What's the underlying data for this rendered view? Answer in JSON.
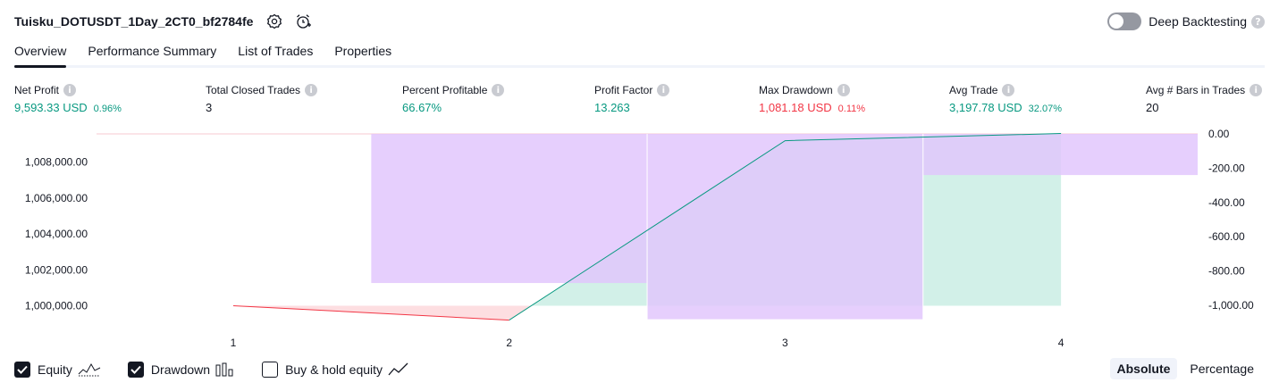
{
  "header": {
    "title": "Tuisku_DOTUSDT_1Day_2CT0_bf2784fe",
    "settings_icon": "gear-icon",
    "alert_icon": "alarm-clock-plus-icon"
  },
  "deep_backtesting": {
    "label": "Deep Backtesting",
    "enabled": false,
    "help": "?"
  },
  "tabs": [
    {
      "label": "Overview",
      "active": true
    },
    {
      "label": "Performance Summary",
      "active": false
    },
    {
      "label": "List of Trades",
      "active": false
    },
    {
      "label": "Properties",
      "active": false
    }
  ],
  "metrics": [
    {
      "label": "Net Profit",
      "value": "9,593.33 USD",
      "pct": "0.96%",
      "tone": "green"
    },
    {
      "label": "Total Closed Trades",
      "value": "3",
      "pct": "",
      "tone": "dark"
    },
    {
      "label": "Percent Profitable",
      "value": "66.67%",
      "pct": "",
      "tone": "green"
    },
    {
      "label": "Profit Factor",
      "value": "13.263",
      "pct": "",
      "tone": "green"
    },
    {
      "label": "Max Drawdown",
      "value": "1,081.18 USD",
      "pct": "0.11%",
      "tone": "red"
    },
    {
      "label": "Avg Trade",
      "value": "3,197.78 USD",
      "pct": "32.07%",
      "tone": "green"
    },
    {
      "label": "Avg # Bars in Trades",
      "value": "20",
      "pct": "",
      "tone": "dark"
    }
  ],
  "chart_data": {
    "type": "line",
    "x": [
      1,
      2,
      3,
      4
    ],
    "x_tick_labels": [
      "1",
      "2",
      "3",
      "4"
    ],
    "left_axis_ticks": [
      "1,000,000.00",
      "1,002,000.00",
      "1,004,000.00",
      "1,006,000.00",
      "1,008,000.00"
    ],
    "left_axis_values": [
      1000000,
      1002000,
      1004000,
      1006000,
      1008000
    ],
    "right_axis_ticks": [
      "0.00",
      "-200.00",
      "-400.00",
      "-600.00",
      "-800.00",
      "-1,000.00"
    ],
    "right_axis_values": [
      0,
      -200,
      -400,
      -600,
      -800,
      -1000
    ],
    "left_range": [
      999200,
      1009600
    ],
    "right_range": [
      -1081.18,
      0
    ],
    "equity": [
      1000000,
      999200,
      1009200,
      1009600
    ],
    "drawdown_bars": [
      {
        "x0": 1.5,
        "x1": 2.5,
        "value": -870
      },
      {
        "x0": 2.5,
        "x1": 3.5,
        "value": -1081.18
      },
      {
        "x0": 3.5,
        "x1": 4.5,
        "value": -240
      }
    ],
    "colors": {
      "equity_up": "#089981",
      "equity_down": "#f23645",
      "drawdown_fill": "#e1c4fc",
      "equity_fill_up": "#cdeee6",
      "equity_fill_down": "#fcd6da"
    }
  },
  "legend": [
    {
      "label": "Equity",
      "checked": true,
      "glyph": "equity-line-icon"
    },
    {
      "label": "Drawdown",
      "checked": true,
      "glyph": "drawdown-bars-icon"
    },
    {
      "label": "Buy & hold equity",
      "checked": false,
      "glyph": "buy-hold-line-icon"
    }
  ],
  "mode": {
    "absolute": "Absolute",
    "percentage": "Percentage",
    "selected": "absolute"
  }
}
